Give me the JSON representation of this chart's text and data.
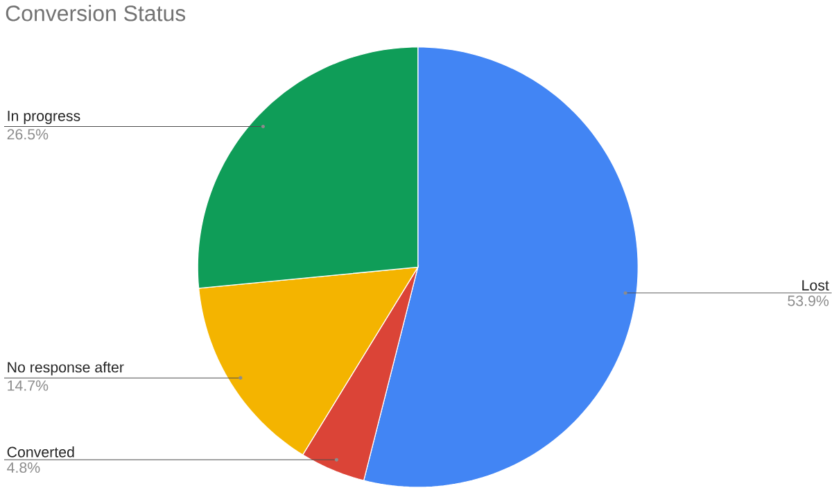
{
  "chart_data": {
    "type": "pie",
    "title": "Conversion Status",
    "categories": [
      "Lost",
      "Converted",
      "No response after",
      "In progress"
    ],
    "values": [
      53.9,
      4.8,
      14.7,
      26.5
    ],
    "value_labels": [
      "53.9%",
      "4.8%",
      "14.7%",
      "26.5%"
    ],
    "colors": [
      "#4285f4",
      "#db4437",
      "#f4b400",
      "#0f9d58"
    ]
  }
}
